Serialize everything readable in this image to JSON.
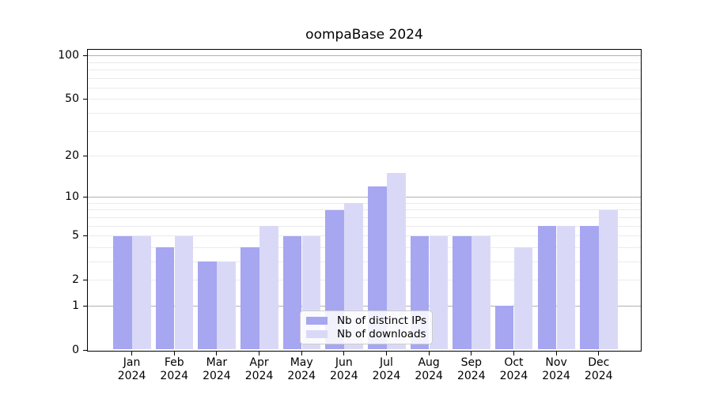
{
  "title": "oompaBase 2024",
  "chart_data": {
    "type": "bar",
    "title": "oompaBase 2024",
    "categories": [
      "Jan",
      "Feb",
      "Mar",
      "Apr",
      "May",
      "Jun",
      "Jul",
      "Aug",
      "Sep",
      "Oct",
      "Nov",
      "Dec"
    ],
    "x_year_label": "2024",
    "series": [
      {
        "name": "Nb of distinct IPs",
        "color": "#a6a6f1",
        "values": [
          5,
          4,
          3,
          4,
          5,
          8,
          12,
          5,
          5,
          1,
          6,
          6
        ]
      },
      {
        "name": "Nb of downloads",
        "color": "#d9d9f7",
        "values": [
          5,
          5,
          3,
          6,
          5,
          9,
          15,
          5,
          5,
          4,
          6,
          8
        ]
      }
    ],
    "y_axis": {
      "scale": "log1p",
      "tick_labels": [
        "0",
        "1",
        "2",
        "5",
        "10",
        "20",
        "50",
        "100"
      ],
      "tick_values": [
        0,
        1,
        2,
        5,
        10,
        20,
        50,
        100
      ],
      "major_gridlines": [
        1,
        10,
        100
      ],
      "minor_gridlines": [
        2,
        3,
        4,
        5,
        6,
        7,
        8,
        9,
        20,
        30,
        40,
        50,
        60,
        70,
        80,
        90
      ],
      "ylim": [
        0,
        110
      ]
    },
    "legend": {
      "position": "lower-center",
      "entries": [
        "Nb of distinct IPs",
        "Nb of downloads"
      ]
    },
    "colors": {
      "distinct_ips": "#a6a6f1",
      "downloads": "#d9d9f7",
      "major_grid": "#b0b0b0",
      "minor_grid": "#ebebeb",
      "axis": "#000000",
      "background": "#ffffff"
    }
  }
}
